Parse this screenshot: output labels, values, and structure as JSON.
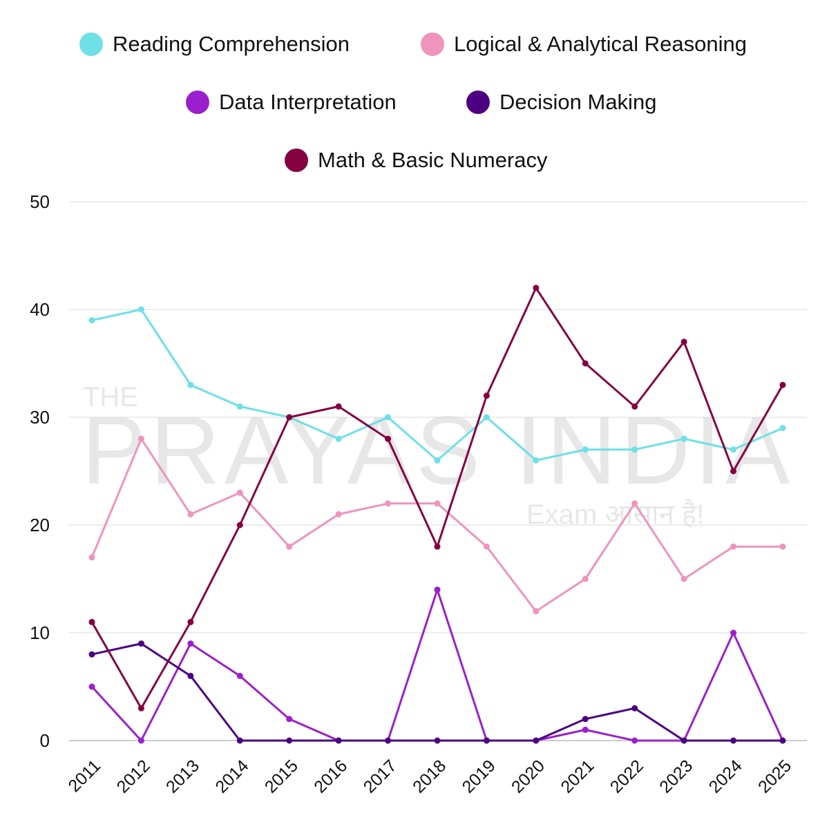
{
  "chart_data": {
    "type": "line",
    "title": "",
    "xlabel": "",
    "ylabel": "",
    "ylim": [
      0,
      50
    ],
    "yticks": [
      0,
      10,
      20,
      30,
      40,
      50
    ],
    "grid": "horizontal",
    "legend_placement": "top",
    "categories": [
      "2011",
      "2012",
      "2013",
      "2014",
      "2015",
      "2016",
      "2017",
      "2018",
      "2019",
      "2020",
      "2021",
      "2022",
      "2023",
      "2024",
      "2025"
    ],
    "series": [
      {
        "name": "Reading Comprehension",
        "color": "#6ee0e6",
        "values": [
          39,
          40,
          33,
          31,
          30,
          28,
          30,
          26,
          30,
          26,
          27,
          27,
          28,
          27,
          29
        ]
      },
      {
        "name": "Logical & Analytical Reasoning",
        "color": "#ee94bd",
        "values": [
          17,
          28,
          21,
          23,
          18,
          21,
          22,
          22,
          18,
          12,
          15,
          22,
          15,
          18,
          18
        ]
      },
      {
        "name": "Data Interpretation",
        "color": "#9b1fcc",
        "values": [
          5,
          0,
          9,
          6,
          2,
          0,
          0,
          14,
          0,
          0,
          1,
          0,
          0,
          10,
          0
        ]
      },
      {
        "name": "Decision Making",
        "color": "#4b0082",
        "values": [
          8,
          9,
          6,
          0,
          0,
          0,
          0,
          0,
          0,
          0,
          2,
          3,
          0,
          0,
          0
        ]
      },
      {
        "name": "Math & Basic Numeracy",
        "color": "#850040",
        "values": [
          11,
          3,
          11,
          20,
          30,
          31,
          28,
          18,
          32,
          42,
          35,
          31,
          37,
          25,
          33
        ]
      }
    ]
  },
  "watermark": {
    "line1": "THE",
    "line2": "PRAYAS INDIA",
    "tagline": "Exam आसान है!"
  }
}
